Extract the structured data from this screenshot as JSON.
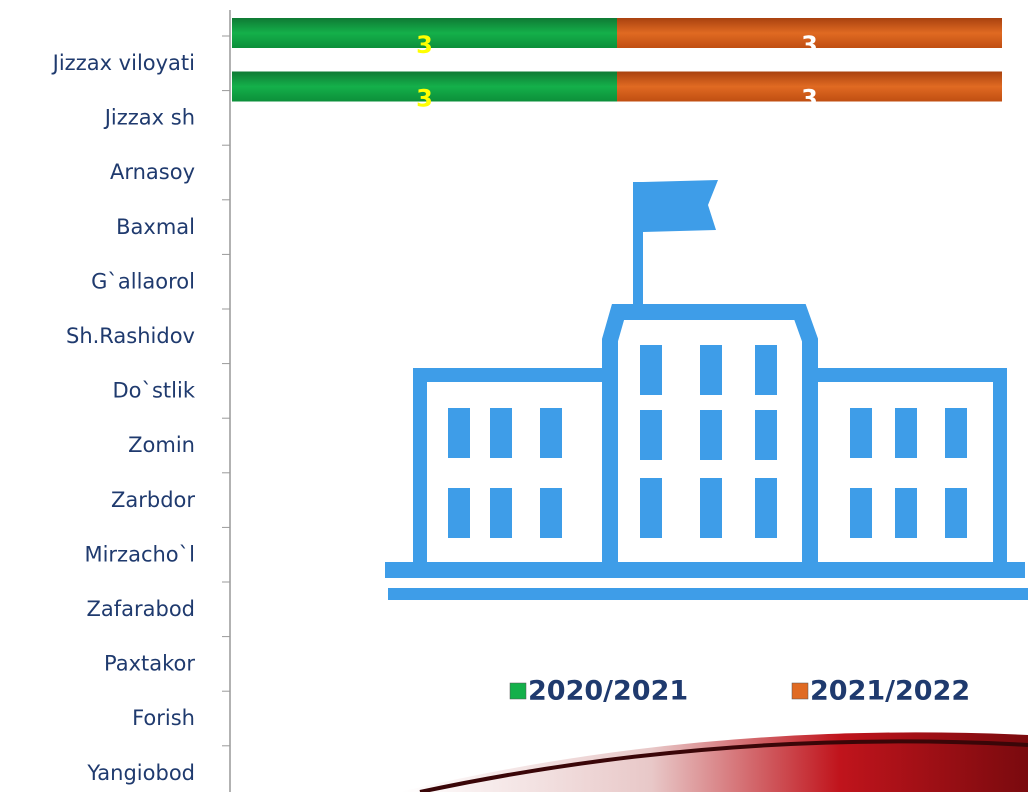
{
  "chart_data": {
    "type": "stacked_bar_horizontal",
    "categories": [
      "Jizzax viloyati",
      "Jizzax sh",
      "Arnasoy",
      "Baxmal",
      "G`allaorol",
      "Sh.Rashidov",
      "Do`stlik",
      "Zomin",
      "Zarbdor",
      "Mirzacho`l",
      "Zafarabod",
      "Paxtakor",
      "Forish",
      "Yangiobod"
    ],
    "series": [
      {
        "name": "2020/2021",
        "color": "#14b04a",
        "values": [
          3,
          3,
          null,
          null,
          null,
          null,
          null,
          null,
          null,
          null,
          null,
          null,
          null,
          null
        ]
      },
      {
        "name": "2021/2022",
        "color": "#e06a22",
        "values": [
          3,
          3,
          null,
          null,
          null,
          null,
          null,
          null,
          null,
          null,
          null,
          null,
          null,
          null
        ]
      }
    ],
    "xlim": [
      0,
      6
    ]
  }
}
